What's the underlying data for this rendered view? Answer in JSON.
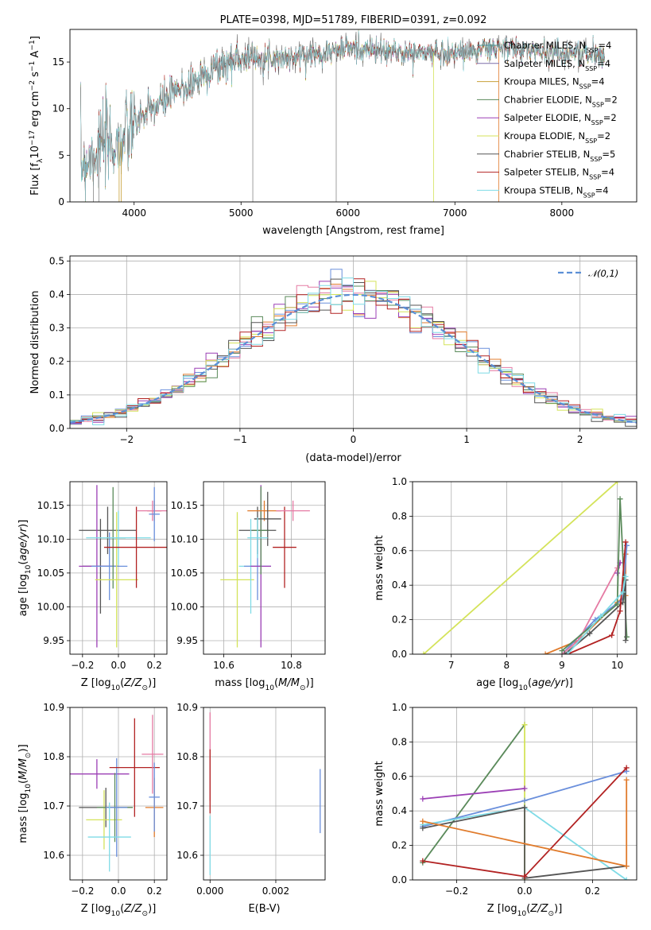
{
  "chart_data": [
    {
      "type": "line",
      "title": "PLATE=0398, MJD=51789, FIBERID=0391, z=0.092",
      "xlabel": "wavelength [Angstrom, rest frame]",
      "ylabel": "Flux [f_λ 10^-17 erg cm^-2 s^-1 A^-1]",
      "xlim": [
        3400,
        8700
      ],
      "ylim": [
        0,
        18.5
      ],
      "xticks": [
        4000,
        5000,
        6000,
        7000,
        8000
      ],
      "yticks": [
        0,
        5,
        10,
        15
      ],
      "grid": false,
      "legend_position": "top-right",
      "spectrum_shape": {
        "x": [
          3500,
          3700,
          3900,
          4000,
          4300,
          4700,
          5000,
          5500,
          6000,
          6500,
          7000,
          7400,
          8000,
          8400
        ],
        "y": [
          4,
          6,
          6.5,
          8.5,
          11,
          14,
          15.5,
          15.5,
          16.5,
          16,
          16,
          16.5,
          16,
          15.8
        ]
      },
      "series": [
        {
          "name": "Chabrier MILES, N_SSP=4",
          "color": "#4c9c9c"
        },
        {
          "name": "Salpeter MILES, N_SSP=4",
          "color": "#7f6fa8"
        },
        {
          "name": "Kroupa MILES, N_SSP=4",
          "color": "#c8a038"
        },
        {
          "name": "Chabrier ELODIE, N_SSP=2",
          "color": "#5a8a5a"
        },
        {
          "name": "Salpeter ELODIE, N_SSP=2",
          "color": "#9b3fb5"
        },
        {
          "name": "Kroupa ELODIE, N_SSP=2",
          "color": "#d4e35a"
        },
        {
          "name": "Chabrier STELIB, N_SSP=5",
          "color": "#555555"
        },
        {
          "name": "Salpeter STELIB, N_SSP=4",
          "color": "#b22222"
        },
        {
          "name": "Kroupa STELIB, N_SSP=4",
          "color": "#7fdbe6"
        }
      ]
    },
    {
      "type": "step",
      "xlabel": "(data-model)/error",
      "ylabel": "Normed distribution",
      "xlim": [
        -2.5,
        2.5
      ],
      "ylim": [
        0,
        0.515
      ],
      "xticks": [
        -2,
        -1,
        0,
        1,
        2
      ],
      "yticks": [
        0.0,
        0.1,
        0.2,
        0.3,
        0.4,
        0.5
      ],
      "grid": true,
      "legend_position": "top-right",
      "reference": {
        "name": "𝒩(0,1)",
        "color": "#5b8fd6",
        "style": "dashed"
      },
      "bin_width": 0.1,
      "series_colors": [
        "#e07b2c",
        "#6a8fdc",
        "#e57aa3",
        "#9b3fb5",
        "#d4e35a",
        "#5a8a5a",
        "#555555",
        "#b22222",
        "#7fdbe6"
      ]
    },
    {
      "type": "errorbar",
      "xlabel": "Z [log10(Z/Z_⊙)]",
      "ylabel": "age [log10(age/yr)]",
      "xlim": [
        -0.27,
        0.27
      ],
      "ylim": [
        9.93,
        10.185
      ],
      "xticks": [
        -0.2,
        0.0,
        0.2
      ],
      "yticks": [
        9.95,
        10.0,
        10.05,
        10.1,
        10.15
      ],
      "grid": true,
      "points": [
        {
          "x": -0.06,
          "y": 10.113,
          "xerr": 0.16,
          "yerr": 0.035,
          "color": "#555555"
        },
        {
          "x": -0.1,
          "y": 10.06,
          "xerr": 0.1,
          "yerr": 0.07,
          "color": "#555555"
        },
        {
          "x": -0.12,
          "y": 10.06,
          "xerr": 0.1,
          "yerr": 0.12,
          "color": "#9b3fb5"
        },
        {
          "x": -0.05,
          "y": 10.06,
          "xerr": 0.1,
          "yerr": 0.05,
          "color": "#6a8fdc"
        },
        {
          "x": -0.03,
          "y": 10.102,
          "xerr": 0.07,
          "yerr": 0.075,
          "color": "#5a8a5a"
        },
        {
          "x": -0.01,
          "y": 10.04,
          "xerr": 0.12,
          "yerr": 0.1,
          "color": "#d4e35a"
        },
        {
          "x": 0.0,
          "y": 10.102,
          "xerr": 0.18,
          "yerr": 0.04,
          "color": "#7fdbe6"
        },
        {
          "x": 0.1,
          "y": 10.088,
          "xerr": 0.18,
          "yerr": 0.06,
          "color": "#b22222"
        },
        {
          "x": 0.2,
          "y": 10.142,
          "xerr": 0.04,
          "yerr": 0.015,
          "color": "#e07b2c"
        },
        {
          "x": 0.19,
          "y": 10.142,
          "xerr": 0.09,
          "yerr": 0.015,
          "color": "#e57aa3"
        },
        {
          "x": 0.2,
          "y": 10.137,
          "xerr": 0.03,
          "yerr": 0.04,
          "color": "#6a8fdc"
        }
      ]
    },
    {
      "type": "errorbar",
      "xlabel": "mass [log10(M/M_⊙)]",
      "ylabel": "",
      "xlim": [
        10.54,
        10.9
      ],
      "ylim": [
        9.93,
        10.185
      ],
      "xticks": [
        10.6,
        10.8
      ],
      "yticks": [
        9.95,
        10.0,
        10.05,
        10.1,
        10.15
      ],
      "grid": true,
      "points": [
        {
          "x": 10.7,
          "y": 10.113,
          "xerr": 0.055,
          "yerr": 0.035,
          "color": "#555555"
        },
        {
          "x": 10.64,
          "y": 10.04,
          "xerr": 0.05,
          "yerr": 0.1,
          "color": "#d4e35a"
        },
        {
          "x": 10.68,
          "y": 10.06,
          "xerr": 0.035,
          "yerr": 0.07,
          "color": "#7fdbe6"
        },
        {
          "x": 10.7,
          "y": 10.06,
          "xerr": 0.04,
          "yerr": 0.05,
          "color": "#6a8fdc"
        },
        {
          "x": 10.71,
          "y": 10.06,
          "xerr": 0.03,
          "yerr": 0.12,
          "color": "#9b3fb5"
        },
        {
          "x": 10.71,
          "y": 10.113,
          "xerr": 0.025,
          "yerr": 0.065,
          "color": "#5a8a5a"
        },
        {
          "x": 10.72,
          "y": 10.142,
          "xerr": 0.05,
          "yerr": 0.015,
          "color": "#e07b2c"
        },
        {
          "x": 10.73,
          "y": 10.13,
          "xerr": 0.04,
          "yerr": 0.04,
          "color": "#555555"
        },
        {
          "x": 10.78,
          "y": 10.088,
          "xerr": 0.035,
          "yerr": 0.06,
          "color": "#b22222"
        },
        {
          "x": 10.805,
          "y": 10.142,
          "xerr": 0.05,
          "yerr": 0.015,
          "color": "#e57aa3"
        },
        {
          "x": 10.7,
          "y": 10.102,
          "xerr": 0.03,
          "yerr": 0.03,
          "color": "#7fdbe6"
        }
      ]
    },
    {
      "type": "line",
      "xlabel": "age [log10(age/yr)]",
      "ylabel": "mass weight",
      "xlim": [
        6.3,
        10.35
      ],
      "ylim": [
        0,
        1.0
      ],
      "xticks": [
        7,
        8,
        9,
        10
      ],
      "yticks": [
        0.0,
        0.2,
        0.4,
        0.6,
        0.8,
        1.0
      ],
      "grid": true,
      "series": [
        {
          "color": "#d4e35a",
          "x": [
            6.5,
            10.0
          ],
          "y": [
            0.0,
            1.0
          ]
        },
        {
          "color": "#e07b2c",
          "x": [
            8.7,
            9.3,
            10.0,
            10.15,
            10.15
          ],
          "y": [
            0.0,
            0.08,
            0.3,
            0.34,
            0.58
          ]
        },
        {
          "color": "#6a8fdc",
          "x": [
            9.0,
            9.6,
            10.1,
            10.17
          ],
          "y": [
            0.0,
            0.2,
            0.32,
            0.63
          ]
        },
        {
          "color": "#e57aa3",
          "x": [
            9.0,
            9.3,
            10.0,
            10.05
          ],
          "y": [
            0.0,
            0.08,
            0.5,
            0.53
          ]
        },
        {
          "color": "#9b3fb5",
          "x": [
            10.0,
            10.05
          ],
          "y": [
            0.47,
            0.53
          ]
        },
        {
          "color": "#5a8a5a",
          "x": [
            9.0,
            10.0,
            10.05,
            10.17
          ],
          "y": [
            0.02,
            0.29,
            0.9,
            0.1
          ]
        },
        {
          "color": "#555555",
          "x": [
            9.05,
            9.5,
            10.1,
            10.15,
            10.15
          ],
          "y": [
            0.0,
            0.12,
            0.3,
            0.43,
            0.08
          ]
        },
        {
          "color": "#b22222",
          "x": [
            9.1,
            9.9,
            10.05,
            10.15
          ],
          "y": [
            0.0,
            0.11,
            0.25,
            0.65
          ]
        },
        {
          "color": "#7fdbe6",
          "x": [
            9.1,
            9.7,
            10.1,
            10.15
          ],
          "y": [
            0.0,
            0.22,
            0.36,
            0.45
          ]
        }
      ]
    },
    {
      "type": "errorbar",
      "xlabel": "Z [log10(Z/Z_⊙)]",
      "ylabel": "mass [log10(M/M_⊙)]",
      "xlim": [
        -0.27,
        0.27
      ],
      "ylim": [
        10.55,
        10.9
      ],
      "xticks": [
        -0.2,
        0.0,
        0.2
      ],
      "yticks": [
        10.6,
        10.7,
        10.8,
        10.9
      ],
      "grid": true,
      "points": [
        {
          "x": -0.12,
          "y": 10.765,
          "xerr": 0.18,
          "yerr": 0.03,
          "color": "#9b3fb5"
        },
        {
          "x": -0.07,
          "y": 10.697,
          "xerr": 0.15,
          "yerr": 0.04,
          "color": "#555555"
        },
        {
          "x": -0.08,
          "y": 10.672,
          "xerr": 0.1,
          "yerr": 0.06,
          "color": "#d4e35a"
        },
        {
          "x": -0.02,
          "y": 10.697,
          "xerr": 0.1,
          "yerr": 0.07,
          "color": "#5a8a5a"
        },
        {
          "x": -0.01,
          "y": 10.697,
          "xerr": 0.06,
          "yerr": 0.1,
          "color": "#6a8fdc"
        },
        {
          "x": -0.05,
          "y": 10.637,
          "xerr": 0.12,
          "yerr": 0.07,
          "color": "#7fdbe6"
        },
        {
          "x": 0.09,
          "y": 10.778,
          "xerr": 0.14,
          "yerr": 0.1,
          "color": "#b22222"
        },
        {
          "x": 0.19,
          "y": 10.805,
          "xerr": 0.06,
          "yerr": 0.08,
          "color": "#e57aa3"
        },
        {
          "x": 0.2,
          "y": 10.697,
          "xerr": 0.05,
          "yerr": 0.06,
          "color": "#e07b2c"
        },
        {
          "x": 0.2,
          "y": 10.718,
          "xerr": 0.03,
          "yerr": 0.07,
          "color": "#6a8fdc"
        }
      ]
    },
    {
      "type": "errorbar",
      "xlabel": "E(B-V)",
      "ylabel": "",
      "xlim": [
        -0.0002,
        0.0035
      ],
      "ylim": [
        10.55,
        10.9
      ],
      "xticks": [
        0.0,
        0.002
      ],
      "yticks": [
        10.6,
        10.7,
        10.8,
        10.9
      ],
      "grid": true,
      "points": [
        {
          "x": 0.0,
          "y": 10.8,
          "xerr": 0,
          "yerr": 0.09,
          "color": "#e57aa3"
        },
        {
          "x": 0.0,
          "y": 10.75,
          "xerr": 0,
          "yerr": 0.065,
          "color": "#b22222"
        },
        {
          "x": 0.0,
          "y": 10.62,
          "xerr": 0,
          "yerr": 0.06,
          "color": "#7fdbe6"
        },
        {
          "x": 0.00335,
          "y": 10.71,
          "xerr": 0,
          "yerr": 0.065,
          "color": "#6a8fdc"
        }
      ]
    },
    {
      "type": "line",
      "xlabel": "Z [log10(Z/Z_⊙)]",
      "ylabel": "mass weight",
      "xlim": [
        -0.33,
        0.33
      ],
      "ylim": [
        0,
        1.0
      ],
      "xticks": [
        -0.2,
        0.0,
        0.2
      ],
      "yticks": [
        0.0,
        0.2,
        0.4,
        0.6,
        0.8,
        1.0
      ],
      "grid": true,
      "series": [
        {
          "color": "#5a8a5a",
          "x": [
            -0.3,
            0.0
          ],
          "y": [
            0.1,
            0.9
          ]
        },
        {
          "color": "#d4e35a",
          "x": [
            0.0,
            0.0
          ],
          "y": [
            0.0,
            0.9
          ]
        },
        {
          "color": "#9b3fb5",
          "x": [
            -0.3,
            0.0
          ],
          "y": [
            0.47,
            0.53
          ]
        },
        {
          "color": "#6a8fdc",
          "x": [
            -0.3,
            0.0,
            0.3
          ],
          "y": [
            0.31,
            0.46,
            0.63
          ]
        },
        {
          "color": "#7fdbe6",
          "x": [
            -0.3,
            0.0,
            0.3
          ],
          "y": [
            0.32,
            0.42,
            0.0
          ]
        },
        {
          "color": "#555555",
          "x": [
            -0.3,
            0.0,
            0.0,
            0.3
          ],
          "y": [
            0.3,
            0.42,
            0.01,
            0.08
          ]
        },
        {
          "color": "#b22222",
          "x": [
            -0.3,
            0.0,
            0.3
          ],
          "y": [
            0.11,
            0.02,
            0.65
          ]
        },
        {
          "color": "#e07b2c",
          "x": [
            -0.3,
            0.3,
            0.3
          ],
          "y": [
            0.34,
            0.08,
            0.58
          ]
        }
      ]
    }
  ]
}
